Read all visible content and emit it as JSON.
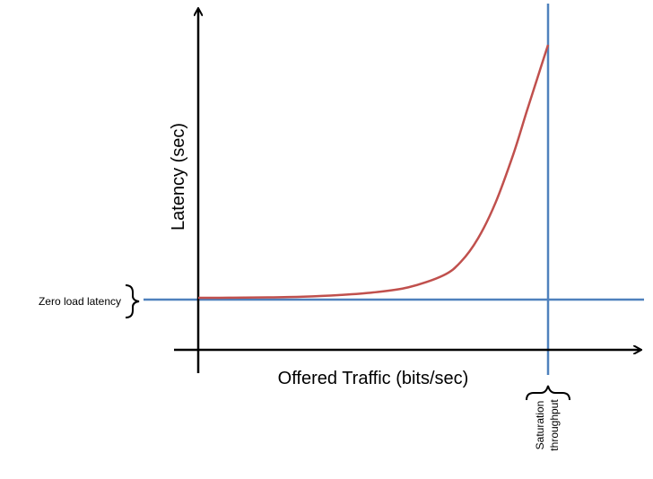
{
  "chart_data": {
    "type": "line",
    "title": "",
    "xlabel": "Offered Traffic (bits/sec)",
    "ylabel": "Latency (sec)",
    "grid": false,
    "legend": "none",
    "series": [
      {
        "x": [
          0,
          0.1,
          0.2,
          0.3,
          0.4,
          0.5,
          0.6,
          0.7,
          0.75,
          0.8,
          0.85,
          0.9,
          0.94,
          0.97,
          1.0
        ],
        "y": [
          1.0,
          1.003,
          1.015,
          1.04,
          1.09,
          1.18,
          1.35,
          1.75,
          2.2,
          3.0,
          4.2,
          5.8,
          7.3,
          8.4,
          9.5
        ]
      }
    ],
    "annotations": {
      "zero_load_latency": "Zero load latency",
      "saturation_line1": "Saturation",
      "saturation_line2": "throughput"
    },
    "colors": {
      "curve": "#c0504d",
      "reference_lines": "#4f81bd",
      "axes": "#000000"
    }
  }
}
